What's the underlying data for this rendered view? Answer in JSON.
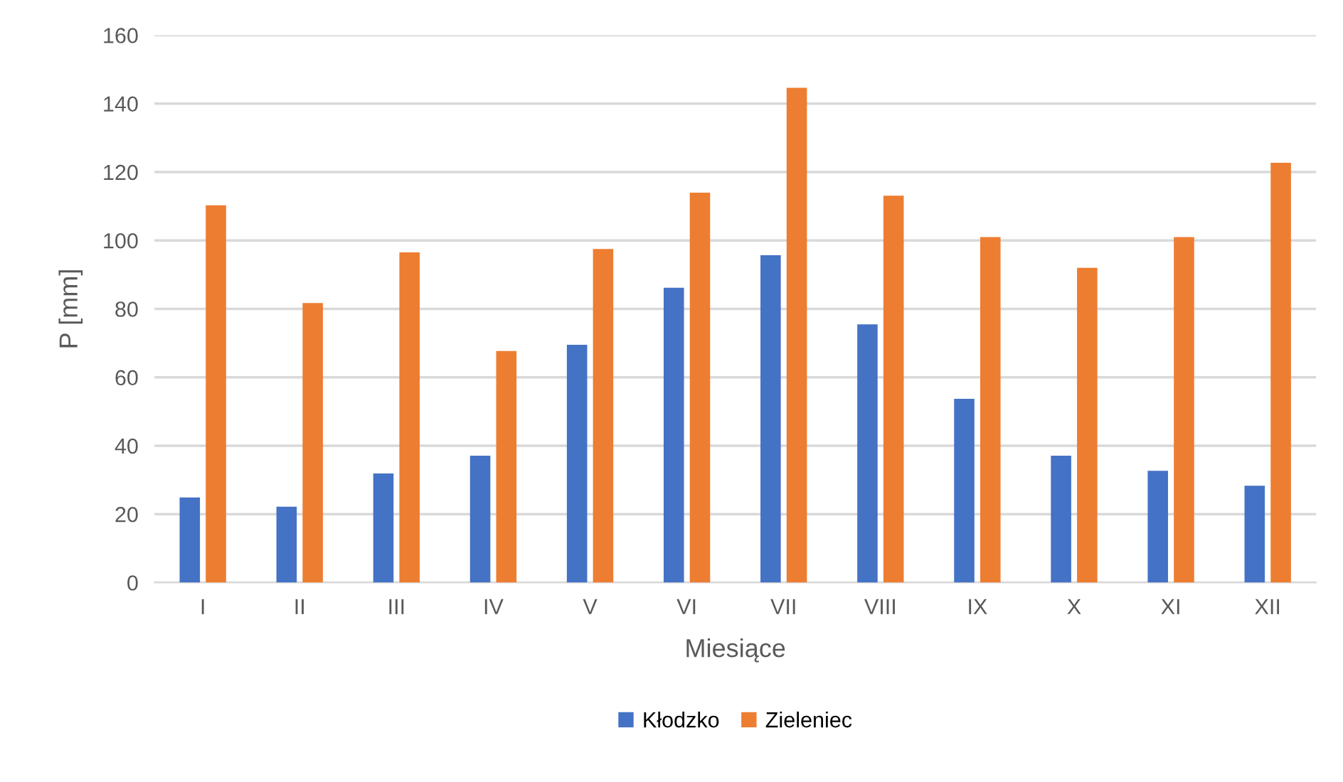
{
  "chart_data": {
    "type": "bar",
    "xlabel": "Miesiące",
    "ylabel": "P [mm]",
    "categories": [
      "I",
      "II",
      "III",
      "IV",
      "V",
      "VI",
      "VII",
      "VIII",
      "IX",
      "X",
      "XI",
      "XII"
    ],
    "series": [
      {
        "name": "Kłodzko",
        "color": "#4472c4",
        "values": [
          24.9,
          22.2,
          31.9,
          37.1,
          69.5,
          86.2,
          95.7,
          75.5,
          53.7,
          37.1,
          32.7,
          28.3
        ]
      },
      {
        "name": "Zieleniec",
        "color": "#ed7d31",
        "values": [
          110.3,
          81.7,
          96.5,
          67.7,
          97.5,
          114.0,
          144.6,
          113.1,
          101.0,
          92.0,
          101.0,
          122.7
        ]
      }
    ],
    "ylim": [
      0,
      160
    ],
    "yticks": [
      0,
      20,
      40,
      60,
      80,
      100,
      120,
      140,
      160
    ],
    "grid": "y",
    "legend": "bottom"
  }
}
